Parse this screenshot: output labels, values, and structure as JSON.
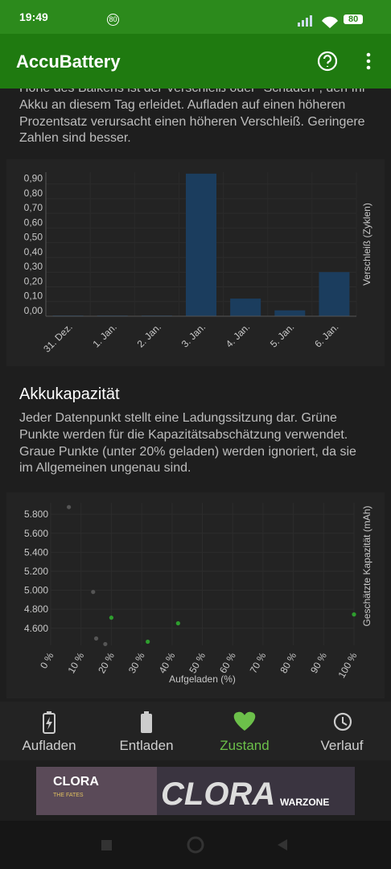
{
  "status_bar": {
    "time": "19:49",
    "notification_badge": "80",
    "battery": "80"
  },
  "app_bar": {
    "title": "AccuBattery"
  },
  "wear_description": "Höhe des Balkens ist der Verschleiß oder \"Schaden\", den Ihr Akku an diesem Tag erleidet. Aufladen auf einen höheren Prozentsatz verursacht einen höheren Verschleiß. Geringere Zahlen sind besser.",
  "capacity_section": {
    "title": "Akkukapazität",
    "description": "Jeder Datenpunkt stellt eine Ladungssitzung dar. Grüne Punkte werden für die Kapazitätsabschätzung verwendet. Graue Punkte (unter 20% geladen) werden ignoriert, da sie im Allgemeinen ungenau sind."
  },
  "chart_data": [
    {
      "type": "bar",
      "y_axis_title": "Verschleiß (Zyklen)",
      "categories": [
        "31. Dez.",
        "1. Jan.",
        "2. Jan.",
        "3. Jan.",
        "4. Jan.",
        "5. Jan.",
        "6. Jan."
      ],
      "values": [
        0.005,
        0.005,
        0.005,
        0.97,
        0.12,
        0.04,
        0.3
      ],
      "color": "#1b3d5e",
      "ylim": [
        0,
        0.98
      ],
      "yticks": [
        {
          "value": 0,
          "label": "0,00"
        },
        {
          "value": 0.1,
          "label": "0,10"
        },
        {
          "value": 0.2,
          "label": "0,20"
        },
        {
          "value": 0.3,
          "label": "0,30"
        },
        {
          "value": 0.4,
          "label": "0,40"
        },
        {
          "value": 0.5,
          "label": "0,50"
        },
        {
          "value": 0.6,
          "label": "0,60"
        },
        {
          "value": 0.7,
          "label": "0,70"
        },
        {
          "value": 0.8,
          "label": "0,80"
        },
        {
          "value": 0.9,
          "label": "0,90"
        }
      ],
      "grid": true
    },
    {
      "type": "scatter",
      "x_axis_title": "Aufgeladen (%)",
      "y_axis_title": "Geschätzte Kapazität (mAh)",
      "xlim": [
        0,
        100
      ],
      "xticks": [
        {
          "value": 0,
          "label": "0 %"
        },
        {
          "value": 10,
          "label": "10 %"
        },
        {
          "value": 20,
          "label": "20 %"
        },
        {
          "value": 30,
          "label": "30 %"
        },
        {
          "value": 40,
          "label": "40 %"
        },
        {
          "value": 50,
          "label": "50 %"
        },
        {
          "value": 60,
          "label": "60 %"
        },
        {
          "value": 70,
          "label": "70 %"
        },
        {
          "value": 80,
          "label": "80 %"
        },
        {
          "value": 90,
          "label": "90 %"
        },
        {
          "value": 100,
          "label": "100 %"
        }
      ],
      "ylim": [
        4420,
        5920
      ],
      "yticks": [
        {
          "value": 4600,
          "label": "4.600"
        },
        {
          "value": 4800,
          "label": "4.800"
        },
        {
          "value": 5000,
          "label": "5.000"
        },
        {
          "value": 5200,
          "label": "5.200"
        },
        {
          "value": 5400,
          "label": "5.400"
        },
        {
          "value": 5600,
          "label": "5.600"
        },
        {
          "value": 5800,
          "label": "5.800"
        }
      ],
      "series": [
        {
          "color": "#555555",
          "x": [
            6,
            14,
            15,
            18
          ],
          "values": [
            5876,
            4982,
            4492,
            4433
          ]
        },
        {
          "color": "#2e9e2e",
          "x": [
            20,
            32,
            42,
            100
          ],
          "values": [
            4711,
            4458,
            4652,
            4745
          ]
        }
      ],
      "grid": true
    }
  ],
  "bottom_nav": {
    "items": [
      "Aufladen",
      "Entladen",
      "Zustand",
      "Verlauf"
    ],
    "active": 2
  },
  "ad": {
    "brand": "CLORA",
    "tagline": "THE FATES",
    "game": "WARZONE"
  }
}
